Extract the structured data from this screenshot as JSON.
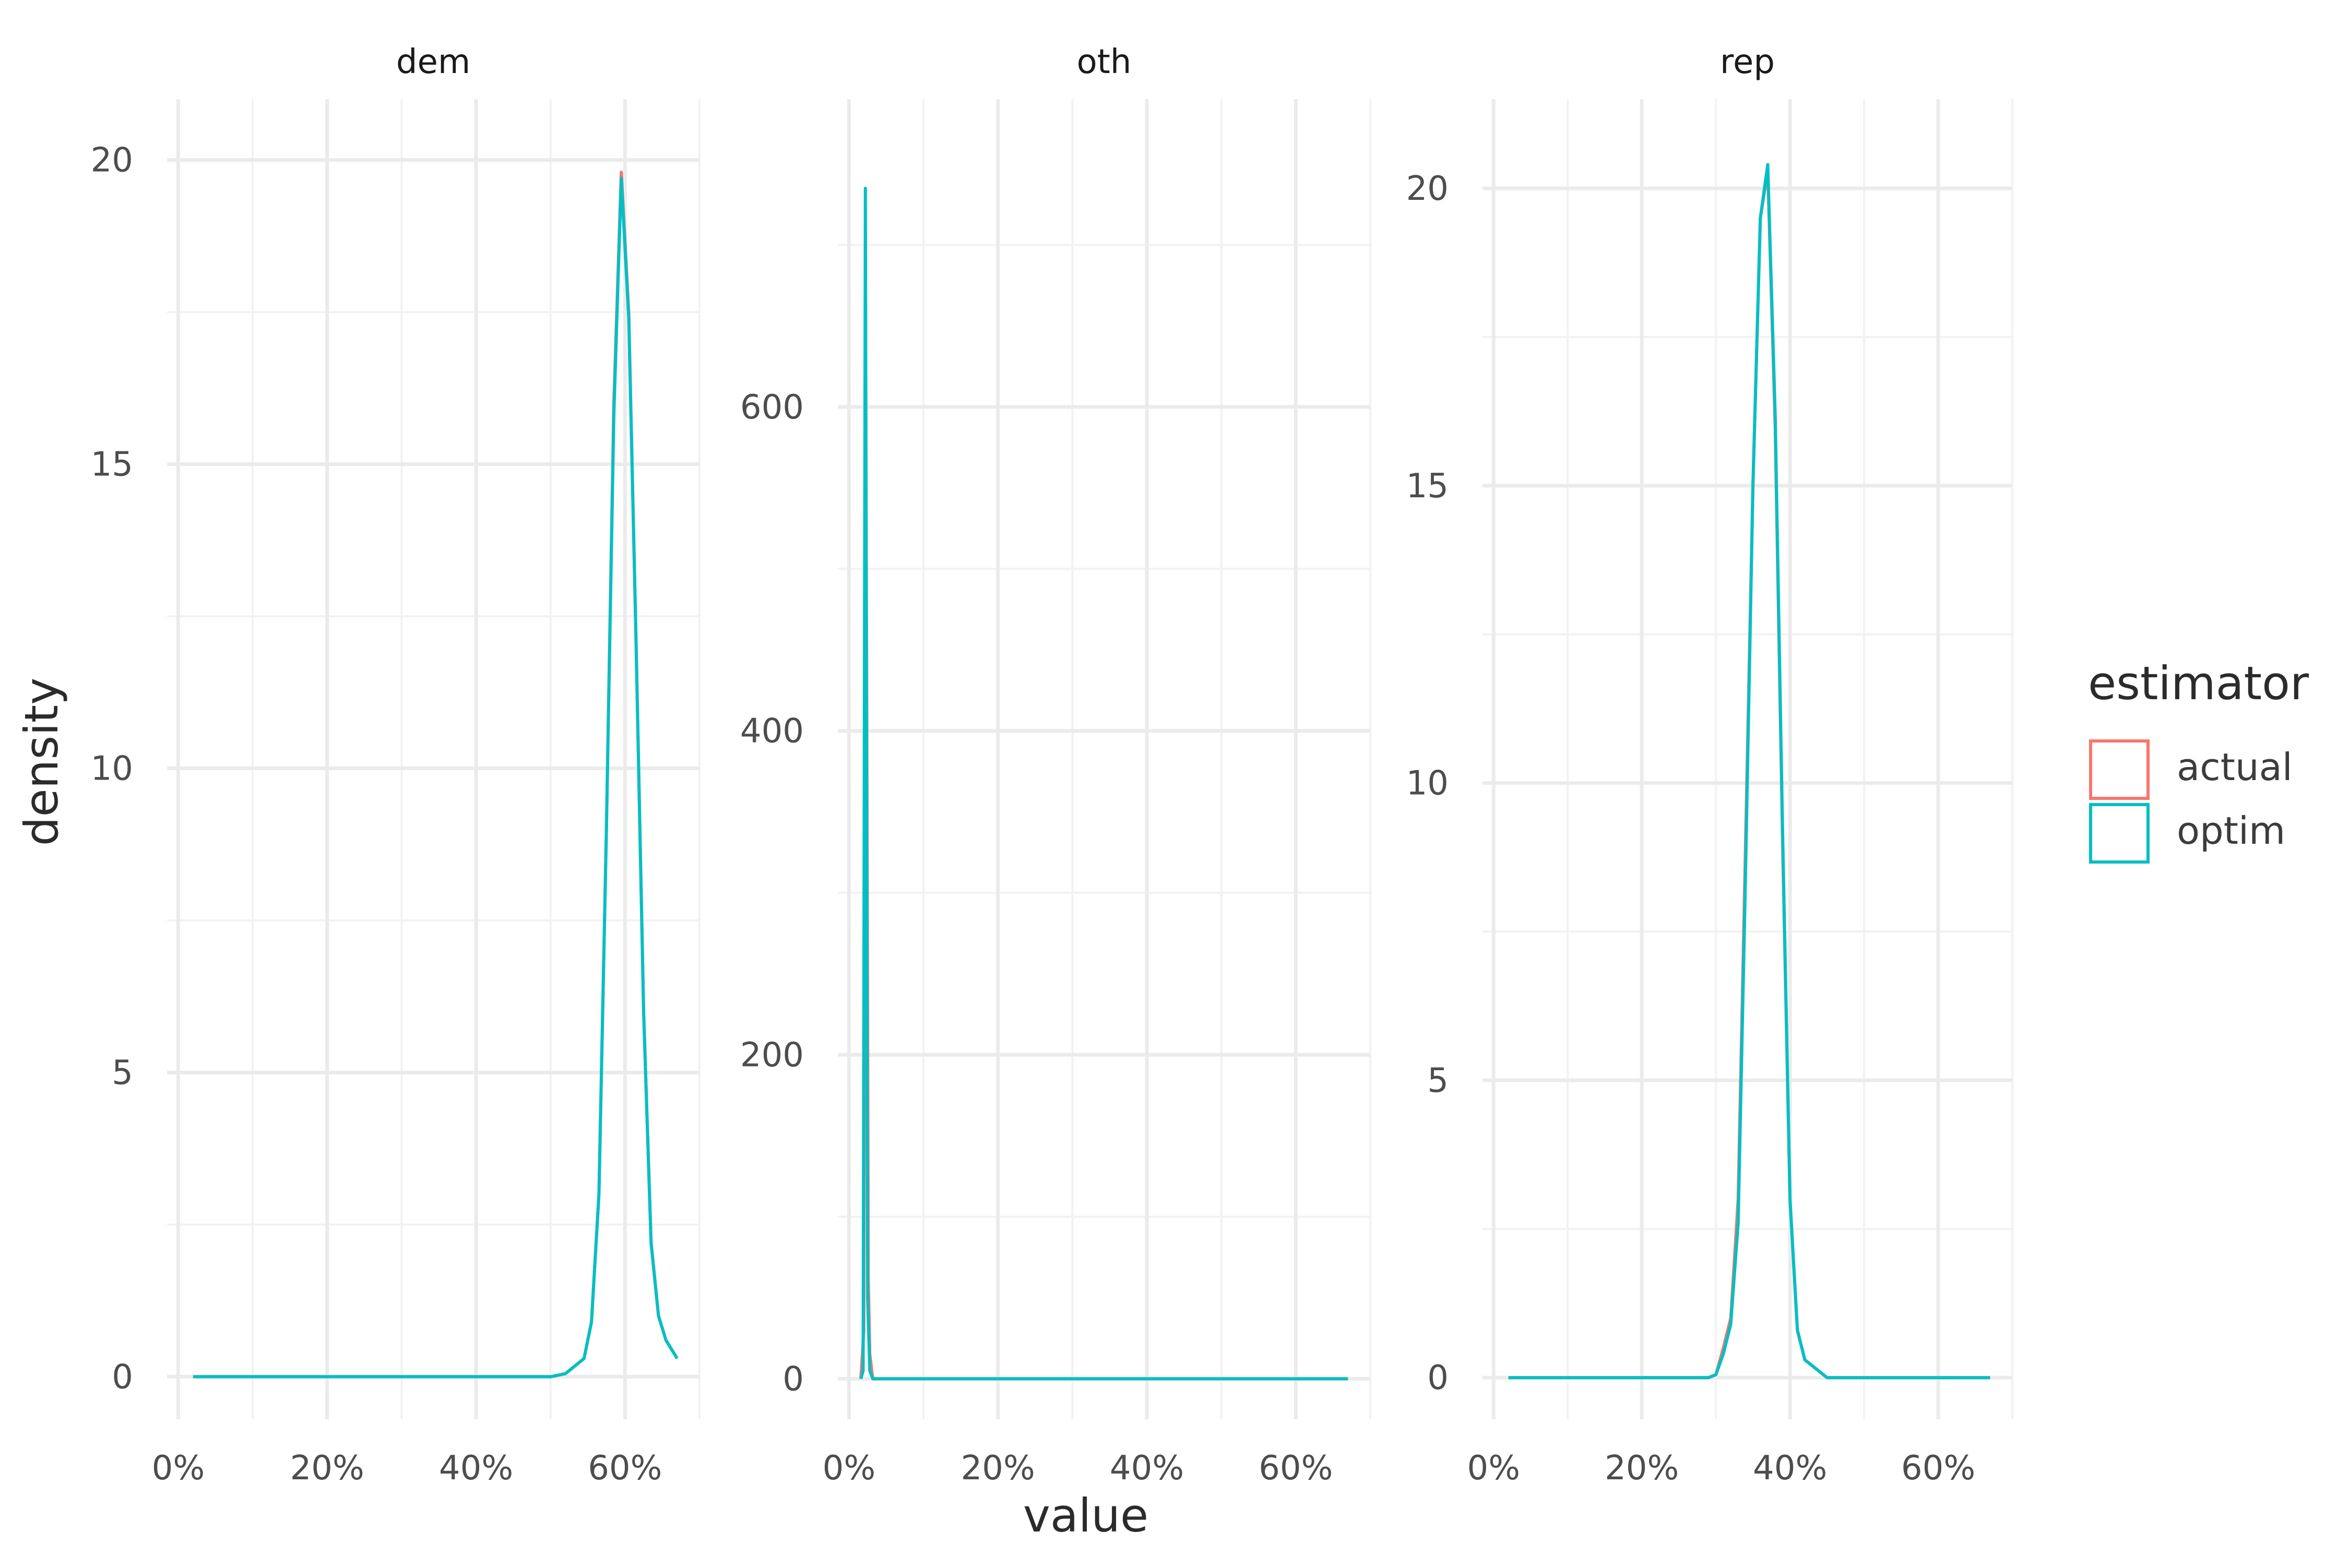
{
  "chart_data": {
    "type": "line",
    "subtype": "density-faceted",
    "xlabel": "value",
    "ylabel": "density",
    "x_format": "percent",
    "legend": {
      "title": "estimator",
      "position": "right",
      "entries": [
        {
          "name": "actual",
          "color": "#F8766D"
        },
        {
          "name": "optim",
          "color": "#00BFC4"
        }
      ]
    },
    "panels": [
      {
        "title": "dem",
        "xlim": [
          -0.015,
          0.7
        ],
        "ylim": [
          -0.7,
          21
        ],
        "x_ticks": [
          0,
          0.2,
          0.4,
          0.6
        ],
        "x_tick_labels": [
          "0%",
          "20%",
          "40%",
          "60%"
        ],
        "y_ticks": [
          0,
          5,
          10,
          15,
          20
        ],
        "y_tick_labels": [
          "0",
          "5",
          "10",
          "15",
          "20"
        ],
        "series": [
          {
            "name": "actual",
            "x": [
              0.02,
              0.5,
              0.52,
              0.53,
              0.545,
              0.555,
              0.565,
              0.575,
              0.585,
              0.595,
              0.605,
              0.615,
              0.625,
              0.635,
              0.645,
              0.655,
              0.67
            ],
            "y": [
              0,
              0,
              0.05,
              0.15,
              0.3,
              0.9,
              3.0,
              9.0,
              16.0,
              19.8,
              17.5,
              12.0,
              6.0,
              2.2,
              1.0,
              0.6,
              0.3
            ]
          },
          {
            "name": "optim",
            "x": [
              0.02,
              0.5,
              0.52,
              0.53,
              0.545,
              0.555,
              0.565,
              0.575,
              0.585,
              0.595,
              0.605,
              0.615,
              0.625,
              0.635,
              0.645,
              0.655,
              0.67
            ],
            "y": [
              0,
              0,
              0.05,
              0.15,
              0.3,
              0.9,
              3.0,
              9.0,
              15.8,
              19.7,
              17.4,
              12.0,
              6.0,
              2.2,
              1.0,
              0.6,
              0.3
            ]
          }
        ]
      },
      {
        "title": "oth",
        "xlim": [
          -0.015,
          0.7
        ],
        "ylim": [
          -25,
          790
        ],
        "x_ticks": [
          0,
          0.2,
          0.4,
          0.6
        ],
        "x_tick_labels": [
          "0%",
          "20%",
          "40%",
          "60%"
        ],
        "y_ticks": [
          0,
          200,
          400,
          600
        ],
        "y_tick_labels": [
          "0",
          "200",
          "400",
          "600"
        ],
        "series": [
          {
            "name": "actual",
            "x": [
              0.016,
              0.02,
              0.022,
              0.024,
              0.026,
              0.028,
              0.032,
              0.4,
              0.67
            ],
            "y": [
              0,
              30,
              700,
              400,
              60,
              15,
              0,
              0,
              0
            ]
          },
          {
            "name": "optim",
            "x": [
              0.016,
              0.019,
              0.022,
              0.025,
              0.028,
              0.032,
              0.4,
              0.67
            ],
            "y": [
              0,
              5,
              735,
              50,
              5,
              0,
              0,
              0
            ]
          }
        ]
      },
      {
        "title": "rep",
        "xlim": [
          -0.015,
          0.7
        ],
        "ylim": [
          -0.7,
          21.5
        ],
        "x_ticks": [
          0,
          0.2,
          0.4,
          0.6
        ],
        "x_tick_labels": [
          "0%",
          "20%",
          "40%",
          "60%"
        ],
        "y_ticks": [
          0,
          5,
          10,
          15,
          20
        ],
        "y_tick_labels": [
          "0",
          "5",
          "10",
          "15",
          "20"
        ],
        "series": [
          {
            "name": "actual",
            "x": [
              0.02,
              0.29,
              0.3,
              0.31,
              0.32,
              0.33,
              0.34,
              0.35,
              0.36,
              0.37,
              0.38,
              0.39,
              0.4,
              0.41,
              0.42,
              0.43,
              0.44,
              0.45,
              0.5,
              0.67
            ],
            "y": [
              0,
              0,
              0.05,
              0.5,
              1.0,
              3.0,
              9.0,
              15.0,
              19.5,
              20.3,
              16.0,
              9.0,
              3.0,
              0.8,
              0.3,
              0.2,
              0.1,
              0,
              0,
              0
            ]
          },
          {
            "name": "optim",
            "x": [
              0.02,
              0.29,
              0.3,
              0.31,
              0.32,
              0.33,
              0.34,
              0.35,
              0.36,
              0.37,
              0.38,
              0.39,
              0.4,
              0.41,
              0.42,
              0.43,
              0.44,
              0.45,
              0.5,
              0.67
            ],
            "y": [
              0,
              0,
              0.05,
              0.4,
              0.9,
              2.6,
              8.5,
              15.0,
              19.5,
              20.4,
              16.2,
              9.2,
              3.0,
              0.8,
              0.3,
              0.2,
              0.1,
              0,
              0,
              0
            ]
          }
        ]
      }
    ]
  }
}
